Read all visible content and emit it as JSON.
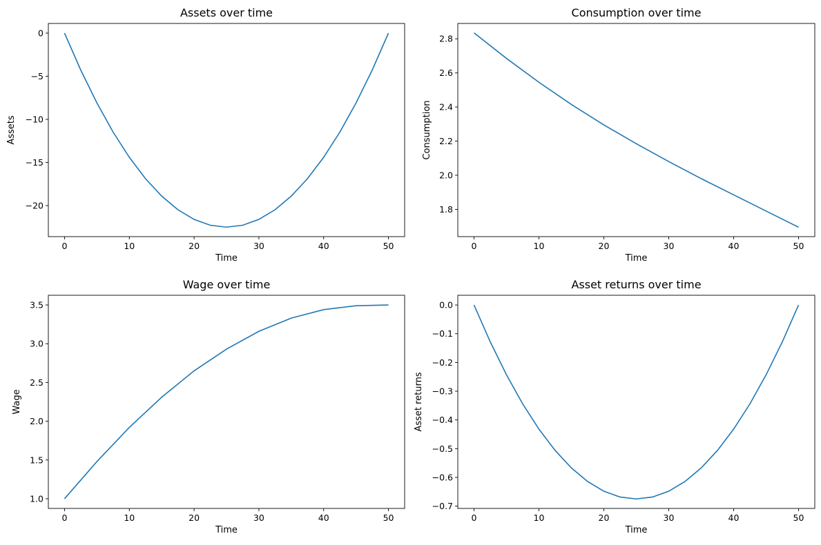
{
  "style": {
    "line_color": "#1f77b4",
    "axis_color": "#000000"
  },
  "chart_data": [
    {
      "type": "line",
      "title": "Assets over time",
      "xlabel": "Time",
      "ylabel": "Assets",
      "xlim": [
        -2.5,
        52.5
      ],
      "ylim": [
        -23.6,
        1.12
      ],
      "xticks": [
        0,
        10,
        20,
        30,
        40,
        50
      ],
      "yticks": [
        0,
        -5,
        -10,
        -15,
        -20
      ],
      "ytick_labels": [
        "0",
        "−5",
        "−10",
        "−15",
        "−20"
      ],
      "grid": false,
      "series": [
        {
          "x": [
            0,
            2.5,
            5,
            7.5,
            10,
            12.5,
            15,
            17.5,
            20,
            22.5,
            25,
            27.5,
            30,
            32.5,
            35,
            37.5,
            40,
            42.5,
            45,
            47.5,
            50
          ],
          "y": [
            0,
            -4.28,
            -8.1,
            -11.48,
            -14.4,
            -16.88,
            -18.9,
            -20.48,
            -21.6,
            -22.28,
            -22.5,
            -22.28,
            -21.6,
            -20.48,
            -18.9,
            -16.88,
            -14.4,
            -11.48,
            -8.1,
            -4.28,
            0
          ]
        }
      ]
    },
    {
      "type": "line",
      "title": "Consumption over time",
      "xlabel": "Time",
      "ylabel": "Consumption",
      "xlim": [
        -2.5,
        52.5
      ],
      "ylim": [
        1.64,
        2.89
      ],
      "xticks": [
        0,
        10,
        20,
        30,
        40,
        50
      ],
      "yticks": [
        1.8,
        2.0,
        2.2,
        2.4,
        2.6,
        2.8
      ],
      "ytick_labels": [
        "1.8",
        "2.0",
        "2.2",
        "2.4",
        "2.6",
        "2.8"
      ],
      "grid": false,
      "series": [
        {
          "x": [
            0,
            5,
            10,
            15,
            20,
            25,
            30,
            35,
            40,
            45,
            50
          ],
          "y": [
            2.835,
            2.685,
            2.545,
            2.415,
            2.295,
            2.185,
            2.08,
            1.98,
            1.885,
            1.79,
            1.695
          ]
        }
      ]
    },
    {
      "type": "line",
      "title": "Wage over time",
      "xlabel": "Time",
      "ylabel": "Wage",
      "xlim": [
        -2.5,
        52.5
      ],
      "ylim": [
        0.875,
        3.625
      ],
      "xticks": [
        0,
        10,
        20,
        30,
        40,
        50
      ],
      "yticks": [
        1.0,
        1.5,
        2.0,
        2.5,
        3.0,
        3.5
      ],
      "ytick_labels": [
        "1.0",
        "1.5",
        "2.0",
        "2.5",
        "3.0",
        "3.5"
      ],
      "grid": false,
      "series": [
        {
          "x": [
            0,
            5,
            10,
            15,
            20,
            25,
            30,
            35,
            40,
            45,
            50
          ],
          "y": [
            1.0,
            1.48,
            1.92,
            2.31,
            2.65,
            2.93,
            3.16,
            3.33,
            3.44,
            3.49,
            3.5
          ]
        }
      ]
    },
    {
      "type": "line",
      "title": "Asset returns over time",
      "xlabel": "Time",
      "ylabel": "Asset returns",
      "xlim": [
        -2.5,
        52.5
      ],
      "ylim": [
        -0.708,
        0.0338
      ],
      "xticks": [
        0,
        10,
        20,
        30,
        40,
        50
      ],
      "yticks": [
        0.0,
        -0.1,
        -0.2,
        -0.3,
        -0.4,
        -0.5,
        -0.6,
        -0.7
      ],
      "ytick_labels": [
        "0.0",
        "−0.1",
        "−0.2",
        "−0.3",
        "−0.4",
        "−0.5",
        "−0.6",
        "−0.7"
      ],
      "grid": false,
      "series": [
        {
          "x": [
            0,
            2.5,
            5,
            7.5,
            10,
            12.5,
            15,
            17.5,
            20,
            22.5,
            25,
            27.5,
            30,
            32.5,
            35,
            37.5,
            40,
            42.5,
            45,
            47.5,
            50
          ],
          "y": [
            0,
            -0.1283,
            -0.243,
            -0.3443,
            -0.432,
            -0.5063,
            -0.567,
            -0.6143,
            -0.648,
            -0.6683,
            -0.675,
            -0.6683,
            -0.648,
            -0.6143,
            -0.567,
            -0.5063,
            -0.432,
            -0.3443,
            -0.243,
            -0.1283,
            0
          ]
        }
      ]
    }
  ]
}
